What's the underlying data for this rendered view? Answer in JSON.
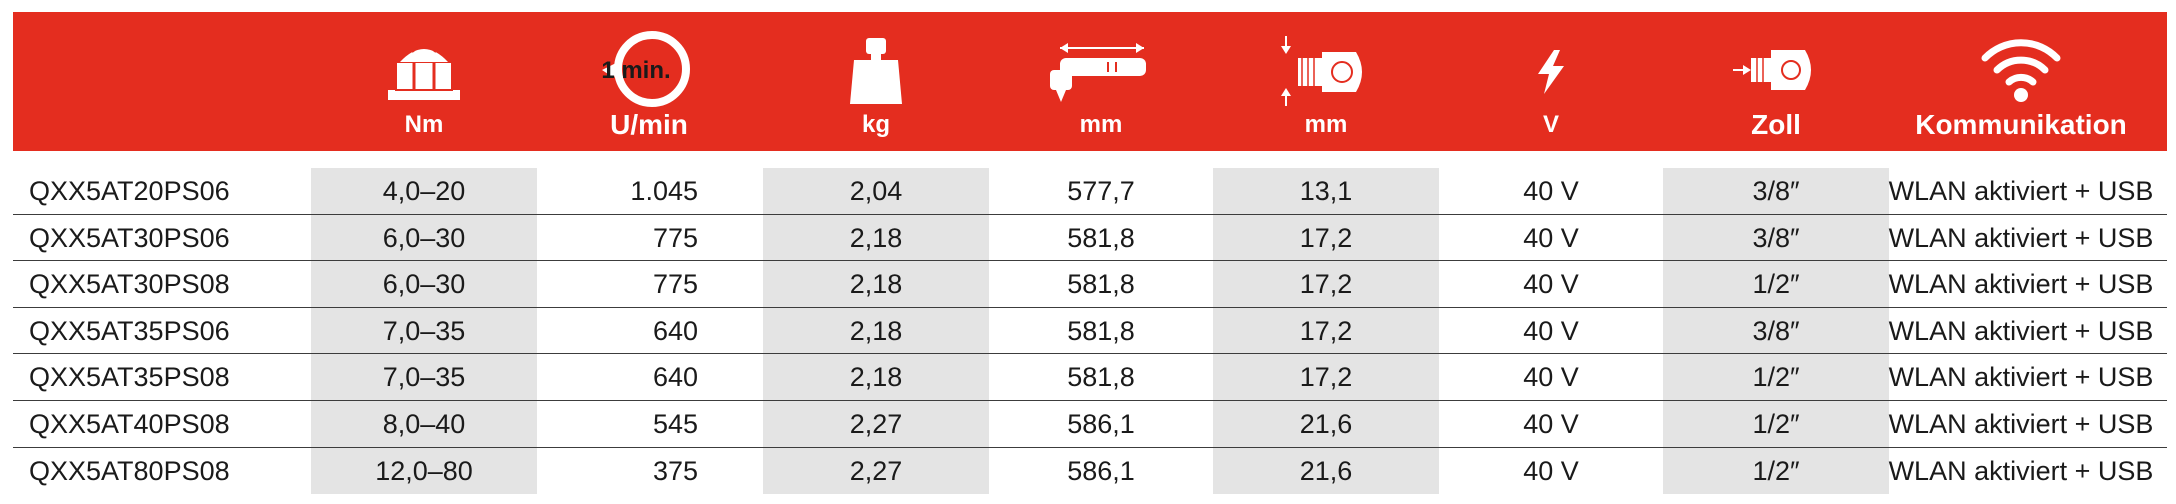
{
  "header": {
    "columns": [
      {
        "icon": "nut-icon",
        "unit": "Nm"
      },
      {
        "icon": "rotation-clock-icon",
        "icon_text": "1 min.",
        "unit": "U/min"
      },
      {
        "icon": "weight-icon",
        "unit": "kg"
      },
      {
        "icon": "tool-length-icon",
        "unit": "mm"
      },
      {
        "icon": "head-height-icon",
        "unit": "mm"
      },
      {
        "icon": "lightning-icon",
        "unit": "V"
      },
      {
        "icon": "drive-square-icon",
        "unit": "Zoll"
      },
      {
        "icon": "wifi-icon",
        "unit": "Kommunikation"
      }
    ],
    "colors": {
      "header_bg": "#e42d1f",
      "header_text": "#ffffff",
      "shade": "#e4e4e4"
    }
  },
  "rows": [
    {
      "model": "QXX5AT20PS06",
      "nm": "4,0–20",
      "rpm": "1.045",
      "kg": "2,04",
      "length": "577,7",
      "head": "13,1",
      "volt": "40 V",
      "zoll": "3/8″",
      "komm": "WLAN aktiviert + USB"
    },
    {
      "model": "QXX5AT30PS06",
      "nm": "6,0–30",
      "rpm": "775",
      "kg": "2,18",
      "length": "581,8",
      "head": "17,2",
      "volt": "40 V",
      "zoll": "3/8″",
      "komm": "WLAN aktiviert + USB"
    },
    {
      "model": "QXX5AT30PS08",
      "nm": "6,0–30",
      "rpm": "775",
      "kg": "2,18",
      "length": "581,8",
      "head": "17,2",
      "volt": "40 V",
      "zoll": "1/2″",
      "komm": "WLAN aktiviert + USB"
    },
    {
      "model": "QXX5AT35PS06",
      "nm": "7,0–35",
      "rpm": "640",
      "kg": "2,18",
      "length": "581,8",
      "head": "17,2",
      "volt": "40 V",
      "zoll": "3/8″",
      "komm": "WLAN aktiviert + USB"
    },
    {
      "model": "QXX5AT35PS08",
      "nm": "7,0–35",
      "rpm": "640",
      "kg": "2,18",
      "length": "581,8",
      "head": "17,2",
      "volt": "40 V",
      "zoll": "1/2″",
      "komm": "WLAN aktiviert + USB"
    },
    {
      "model": "QXX5AT40PS08",
      "nm": "8,0–40",
      "rpm": "545",
      "kg": "2,27",
      "length": "586,1",
      "head": "21,6",
      "volt": "40 V",
      "zoll": "1/2″",
      "komm": "WLAN aktiviert + USB"
    },
    {
      "model": "QXX5AT80PS08",
      "nm": "12,0–80",
      "rpm": "375",
      "kg": "2,27",
      "length": "586,1",
      "head": "21,6",
      "volt": "40 V",
      "zoll": "1/2″",
      "komm": "WLAN aktiviert + USB"
    }
  ]
}
